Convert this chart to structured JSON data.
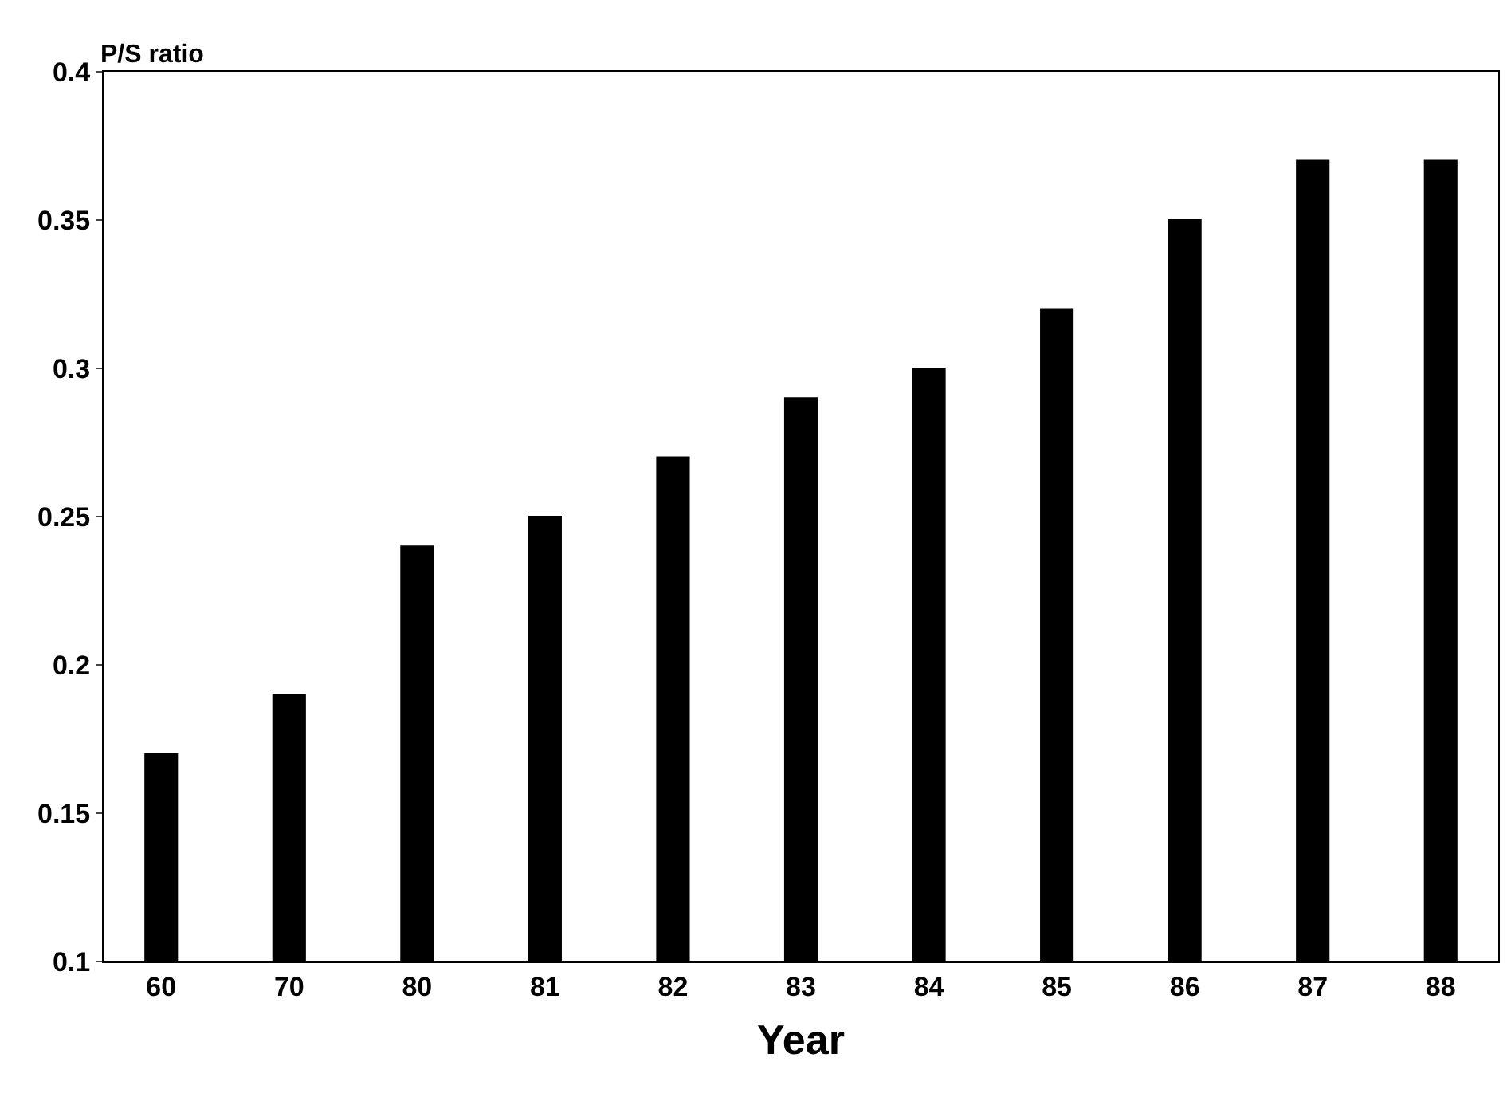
{
  "chart_data": {
    "type": "bar",
    "ylabel": "P/S ratio",
    "xlabel": "Year",
    "categories": [
      "60",
      "70",
      "80",
      "81",
      "82",
      "83",
      "84",
      "85",
      "86",
      "87",
      "88"
    ],
    "values": [
      0.17,
      0.19,
      0.24,
      0.25,
      0.27,
      0.29,
      0.3,
      0.32,
      0.35,
      0.37,
      0.37
    ],
    "color": "#000000",
    "ylim": [
      0.1,
      0.4
    ],
    "yticks": [
      0.1,
      {
        "value": 0.15,
        "label": "0.15"
      },
      {
        "value": 0.2,
        "label": "0.2"
      },
      {
        "value": 0.25,
        "label": "0.25"
      },
      {
        "value": 0.3,
        "label": "0.3"
      },
      {
        "value": 0.35,
        "label": "0.35"
      },
      {
        "value": 0.4,
        "label": "0.4"
      }
    ],
    "legend": false
  }
}
